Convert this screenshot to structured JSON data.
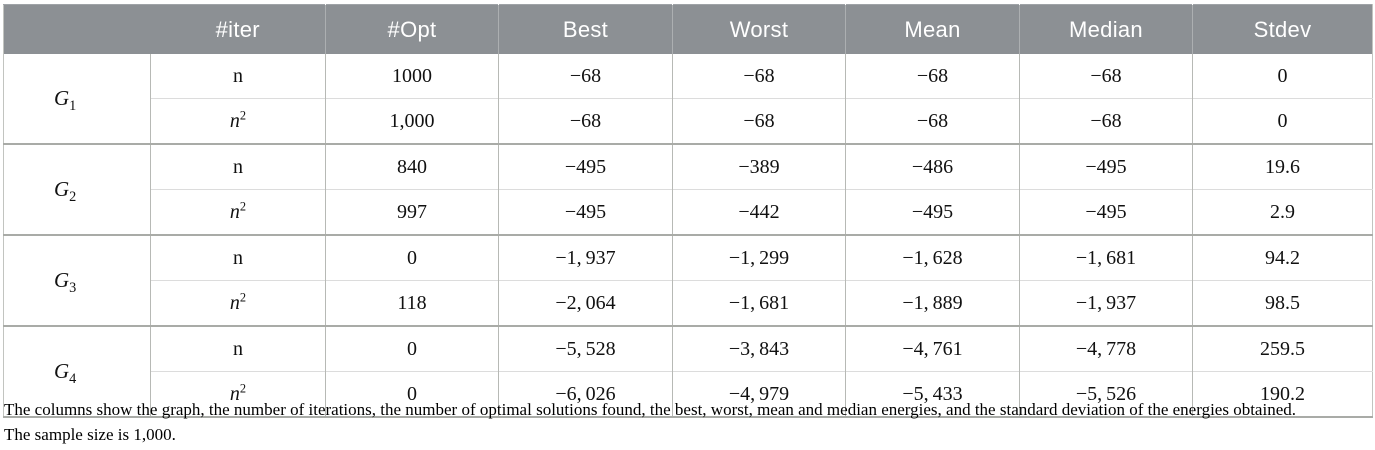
{
  "table": {
    "header": {
      "graph_label": "",
      "columns": [
        "#iter",
        "#Opt",
        "Best",
        "Worst",
        "Mean",
        "Median",
        "Stdev"
      ]
    },
    "groups": [
      {
        "name": "G",
        "sub": "1",
        "rows": [
          {
            "iter": "n",
            "iter_sup": "",
            "opt": "1000",
            "best": "−68",
            "worst": "−68",
            "mean": "−68",
            "median": "−68",
            "stdev": "0"
          },
          {
            "iter": "n",
            "iter_sup": "2",
            "opt": "1,000",
            "best": "−68",
            "worst": "−68",
            "mean": "−68",
            "median": "−68",
            "stdev": "0"
          }
        ]
      },
      {
        "name": "G",
        "sub": "2",
        "rows": [
          {
            "iter": "n",
            "iter_sup": "",
            "opt": "840",
            "best": "−495",
            "worst": "−389",
            "mean": "−486",
            "median": "−495",
            "stdev": "19.6"
          },
          {
            "iter": "n",
            "iter_sup": "2",
            "opt": "997",
            "best": "−495",
            "worst": "−442",
            "mean": "−495",
            "median": "−495",
            "stdev": "2.9"
          }
        ]
      },
      {
        "name": "G",
        "sub": "3",
        "rows": [
          {
            "iter": "n",
            "iter_sup": "",
            "opt": "0",
            "best": "−1, 937",
            "worst": "−1, 299",
            "mean": "−1, 628",
            "median": "−1, 681",
            "stdev": "94.2"
          },
          {
            "iter": "n",
            "iter_sup": "2",
            "opt": "118",
            "best": "−2, 064",
            "worst": "−1, 681",
            "mean": "−1, 889",
            "median": "−1, 937",
            "stdev": "98.5"
          }
        ]
      },
      {
        "name": "G",
        "sub": "4",
        "rows": [
          {
            "iter": "n",
            "iter_sup": "",
            "opt": "0",
            "best": "−5, 528",
            "worst": "−3, 843",
            "mean": "−4, 761",
            "median": "−4, 778",
            "stdev": "259.5"
          },
          {
            "iter": "n",
            "iter_sup": "2",
            "opt": "0",
            "best": "−6, 026",
            "worst": "−4, 979",
            "mean": "−5, 433",
            "median": "−5, 526",
            "stdev": "190.2"
          }
        ]
      }
    ]
  },
  "caption": {
    "line1": "The columns show the graph, the number of iterations, the number of optimal solutions found, the best, worst, mean and median energies, and the standard deviation of the energies obtained.",
    "line2": "The sample size is 1,000."
  },
  "colors": {
    "header_bg": "#8c9094",
    "group_border": "#a9aba7",
    "subrow_border": "#dcdcdc",
    "cell_border": "#b7b9b5"
  }
}
